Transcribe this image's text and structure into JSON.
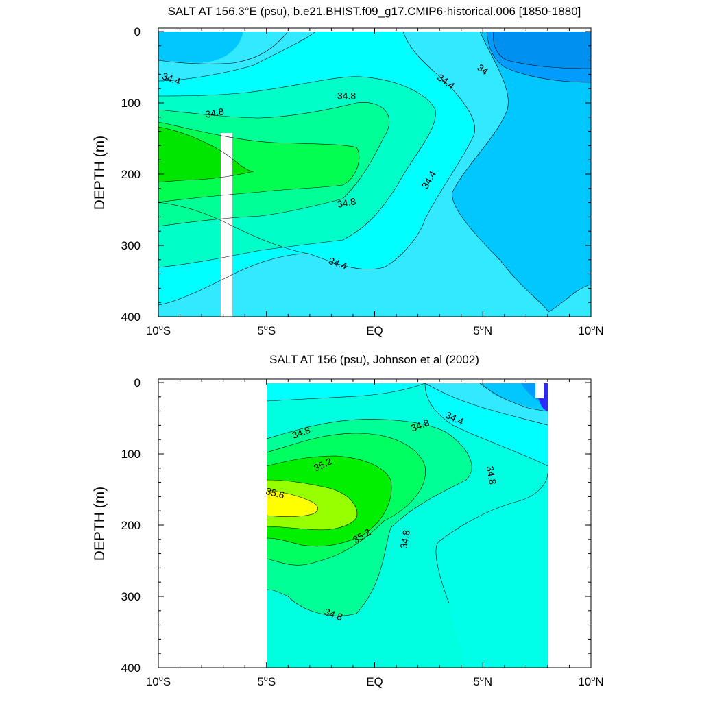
{
  "chart_data": [
    {
      "type": "contour",
      "title": "SALT AT 156.3°E (psu), b.e21.BHIST.f09_g17.CMIP6-historical.006 [1850-1880]",
      "xlabel": "",
      "ylabel": "DEPTH (m)",
      "xlim": [
        -10,
        10
      ],
      "ylim": [
        400,
        0
      ],
      "x_ticks": [
        -10,
        -5,
        0,
        5,
        10
      ],
      "x_tick_labels": [
        "10°S",
        "5°S",
        "EQ",
        "5°N",
        "10°N"
      ],
      "y_ticks": [
        0,
        100,
        200,
        300,
        400
      ],
      "y_tick_labels": [
        "0",
        "100",
        "200",
        "300",
        "400"
      ],
      "contour_interval": 0.2,
      "levels": [
        33.6,
        33.8,
        34.0,
        34.2,
        34.4,
        34.6,
        34.8,
        35.0,
        35.2
      ],
      "salinity_max_approx": 35.2,
      "salinity_max_location": {
        "lat": -8,
        "depth": 190
      },
      "contour_labels": [
        {
          "text": "34.4",
          "lat": -9.4,
          "depth": 66
        },
        {
          "text": "34.8",
          "lat": -7.4,
          "depth": 114
        },
        {
          "text": "34.8",
          "lat": -1.3,
          "depth": 90
        },
        {
          "text": "34.4",
          "lat": 3.3,
          "depth": 70
        },
        {
          "text": "34",
          "lat": 5.0,
          "depth": 53
        },
        {
          "text": "34.4",
          "lat": 2.5,
          "depth": 208
        },
        {
          "text": "34.8",
          "lat": -1.3,
          "depth": 240
        },
        {
          "text": "34.4",
          "lat": -1.7,
          "depth": 325
        }
      ],
      "missing_data_bar": {
        "lat_range": [
          -7.2,
          -6.7
        ],
        "depth_range": [
          145,
          400
        ]
      }
    },
    {
      "type": "contour",
      "title": "SALT AT 156 (psu), Johnson et al (2002)",
      "xlabel": "",
      "ylabel": "DEPTH (m)",
      "xlim": [
        -10,
        10
      ],
      "ylim": [
        400,
        0
      ],
      "x_ticks": [
        -10,
        -5,
        0,
        5,
        10
      ],
      "x_tick_labels": [
        "10°S",
        "5°S",
        "EQ",
        "5°N",
        "10°N"
      ],
      "y_ticks": [
        0,
        100,
        200,
        300,
        400
      ],
      "y_tick_labels": [
        "0",
        "100",
        "200",
        "300",
        "400"
      ],
      "data_lat_range": [
        -5,
        8
      ],
      "contour_interval": 0.2,
      "levels": [
        34.0,
        34.2,
        34.4,
        34.6,
        34.8,
        35.0,
        35.2,
        35.4,
        35.6
      ],
      "salinity_max_approx": 35.7,
      "salinity_max_location": {
        "lat": -4.5,
        "depth": 170
      },
      "contour_labels": [
        {
          "text": "34.8",
          "lat": -3.4,
          "depth": 70
        },
        {
          "text": "34.8",
          "lat": 2.1,
          "depth": 60
        },
        {
          "text": "34.4",
          "lat": 3.7,
          "depth": 50
        },
        {
          "text": "35.2",
          "lat": -2.4,
          "depth": 115
        },
        {
          "text": "35.6",
          "lat": -4.6,
          "depth": 155
        },
        {
          "text": "34.8",
          "lat": 5.4,
          "depth": 130
        },
        {
          "text": "35.2",
          "lat": -0.6,
          "depth": 215
        },
        {
          "text": "34.8",
          "lat": 1.4,
          "depth": 220
        },
        {
          "text": "34.8",
          "lat": -1.9,
          "depth": 325
        }
      ]
    }
  ]
}
